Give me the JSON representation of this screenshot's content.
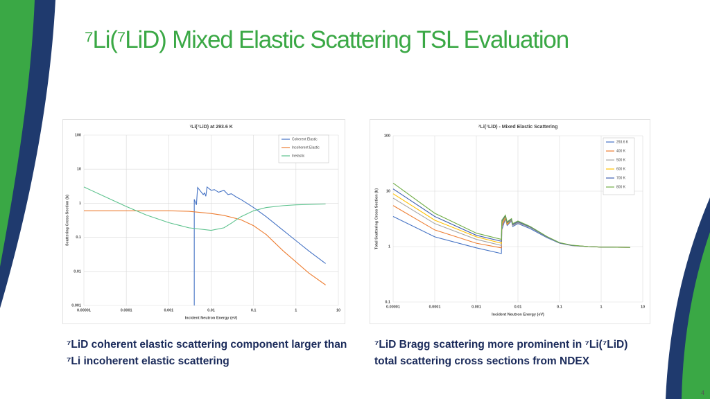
{
  "slide": {
    "title": "⁷Li(⁷LiD) Mixed Elastic Scattering TSL Evaluation",
    "captions": [
      "⁷LiD coherent elastic scattering component larger than ⁷Li incoherent elastic scattering",
      "⁷LiD Bragg scattering more prominent in ⁷Li(⁷LiD) total scattering cross sections from NDEX"
    ],
    "page_number": 4
  },
  "chart_data": [
    {
      "type": "line",
      "title": "⁷Li(⁷LiD) at 293.6 K",
      "x_label": "Incident Neutron Energy (eV)",
      "y_label": "Scattering Cross Section (b)",
      "log_x": true,
      "log_y": true,
      "grid": true,
      "legend": "upper right",
      "xlim": [
        1e-05,
        10
      ],
      "ylim": [
        0.001,
        100
      ],
      "xticks": [
        {
          "value": 1e-05,
          "label": "0.00001"
        },
        0.0001,
        0.001,
        0.01,
        0.1,
        1,
        10
      ],
      "yticks": [
        0.001,
        0.01,
        0.1,
        1,
        10,
        100
      ],
      "series": [
        {
          "name": "Coherent Elastic",
          "color": "#4472c4",
          "x": [
            0.004,
            0.004,
            0.0045,
            0.0048,
            0.0065,
            0.007,
            0.0075,
            0.008,
            0.01,
            0.012,
            0.015,
            0.02,
            0.025,
            0.03,
            0.04,
            0.05,
            0.1,
            0.2,
            0.5,
            1,
            2,
            5
          ],
          "values": [
            0.001,
            1.3,
            0.9,
            2.9,
            1.8,
            2.0,
            1.6,
            3.0,
            2.4,
            2.5,
            2.1,
            2.4,
            1.8,
            1.9,
            1.5,
            1.3,
            0.75,
            0.4,
            0.16,
            0.08,
            0.04,
            0.017
          ]
        },
        {
          "name": "Incoherent Elastic",
          "color": "#ed7d31",
          "x": [
            1e-05,
            0.0001,
            0.001,
            0.003,
            0.01,
            0.02,
            0.05,
            0.1,
            0.2,
            0.5,
            1,
            2,
            5
          ],
          "values": [
            0.6,
            0.6,
            0.6,
            0.58,
            0.5,
            0.44,
            0.33,
            0.22,
            0.12,
            0.04,
            0.019,
            0.009,
            0.004
          ]
        },
        {
          "name": "Inelastic",
          "color": "#5cc28d",
          "x": [
            1e-05,
            3e-05,
            0.0001,
            0.0003,
            0.001,
            0.003,
            0.01,
            0.02,
            0.03,
            0.05,
            0.1,
            0.2,
            0.5,
            1,
            5
          ],
          "values": [
            3,
            1.6,
            0.8,
            0.45,
            0.27,
            0.19,
            0.16,
            0.19,
            0.26,
            0.4,
            0.6,
            0.75,
            0.85,
            0.9,
            0.95
          ]
        }
      ]
    },
    {
      "type": "line",
      "title": "⁷Li(⁷LiD) - Mixed Elastic Scattering",
      "x_label": "Incident Neutron Energy (eV)",
      "y_label": "Total Scattering Cross Section (b)",
      "log_x": true,
      "log_y": true,
      "grid": true,
      "legend": "upper right",
      "xlim": [
        1e-05,
        10
      ],
      "ylim": [
        0.1,
        100
      ],
      "xticks": [
        {
          "value": 1e-05,
          "label": "0.00001"
        },
        0.0001,
        0.001,
        0.01,
        0.1,
        1,
        10
      ],
      "yticks": [
        0.1,
        1,
        10,
        100
      ],
      "series": [
        {
          "name": "293.6 K",
          "color": "#4472c4",
          "x": [
            1e-05,
            0.0001,
            0.001,
            0.004,
            0.0041,
            0.005,
            0.0055,
            0.007,
            0.0075,
            0.01,
            0.02,
            0.05,
            0.1,
            0.2,
            0.5,
            1,
            5
          ],
          "values": [
            3.5,
            1.5,
            0.95,
            0.75,
            2.0,
            3.2,
            2.4,
            2.9,
            2.3,
            2.6,
            2.1,
            1.45,
            1.15,
            1.04,
            1.0,
            0.98,
            0.97
          ]
        },
        {
          "name": "400 K",
          "color": "#ed7d31",
          "x": [
            1e-05,
            0.0001,
            0.001,
            0.004,
            0.0041,
            0.005,
            0.0055,
            0.007,
            0.0075,
            0.01,
            0.02,
            0.05,
            0.1,
            0.2,
            0.5,
            1,
            5
          ],
          "values": [
            5.5,
            2.0,
            1.15,
            0.95,
            2.3,
            3.3,
            2.5,
            3.0,
            2.4,
            2.7,
            2.2,
            1.5,
            1.17,
            1.05,
            1.0,
            0.98,
            0.97
          ]
        },
        {
          "name": "500 K",
          "color": "#a5a5a5",
          "x": [
            1e-05,
            0.0001,
            0.001,
            0.004,
            0.0041,
            0.005,
            0.0055,
            0.007,
            0.0075,
            0.01,
            0.02,
            0.05,
            0.1,
            0.2,
            0.5,
            1,
            5
          ],
          "values": [
            7.5,
            2.6,
            1.35,
            1.05,
            2.5,
            3.4,
            2.6,
            3.0,
            2.4,
            2.7,
            2.2,
            1.48,
            1.16,
            1.05,
            1.0,
            0.98,
            0.97
          ]
        },
        {
          "name": "600 K",
          "color": "#ffc000",
          "x": [
            1e-05,
            0.0001,
            0.001,
            0.004,
            0.0041,
            0.005,
            0.0055,
            0.007,
            0.0075,
            0.01,
            0.02,
            0.05,
            0.1,
            0.2,
            0.5,
            1,
            5
          ],
          "values": [
            9,
            3.0,
            1.5,
            1.15,
            2.6,
            3.5,
            2.6,
            3.1,
            2.5,
            2.8,
            2.25,
            1.5,
            1.17,
            1.05,
            1.0,
            0.98,
            0.97
          ]
        },
        {
          "name": "700 K",
          "color": "#3f5fb0",
          "x": [
            1e-05,
            0.0001,
            0.001,
            0.004,
            0.0041,
            0.005,
            0.0055,
            0.007,
            0.0075,
            0.01,
            0.02,
            0.05,
            0.1,
            0.2,
            0.5,
            1,
            5
          ],
          "values": [
            11,
            3.5,
            1.6,
            1.25,
            2.8,
            3.6,
            2.7,
            3.1,
            2.5,
            2.8,
            2.25,
            1.5,
            1.17,
            1.05,
            1.0,
            0.98,
            0.97
          ]
        },
        {
          "name": "800 K",
          "color": "#70ad47",
          "x": [
            1e-05,
            0.0001,
            0.001,
            0.004,
            0.0041,
            0.005,
            0.0055,
            0.007,
            0.0075,
            0.01,
            0.02,
            0.05,
            0.1,
            0.2,
            0.5,
            1,
            5
          ],
          "values": [
            14,
            4.0,
            1.75,
            1.35,
            3.0,
            3.7,
            2.8,
            3.2,
            2.6,
            2.9,
            2.3,
            1.52,
            1.18,
            1.06,
            1.0,
            0.98,
            0.97
          ]
        }
      ]
    }
  ]
}
